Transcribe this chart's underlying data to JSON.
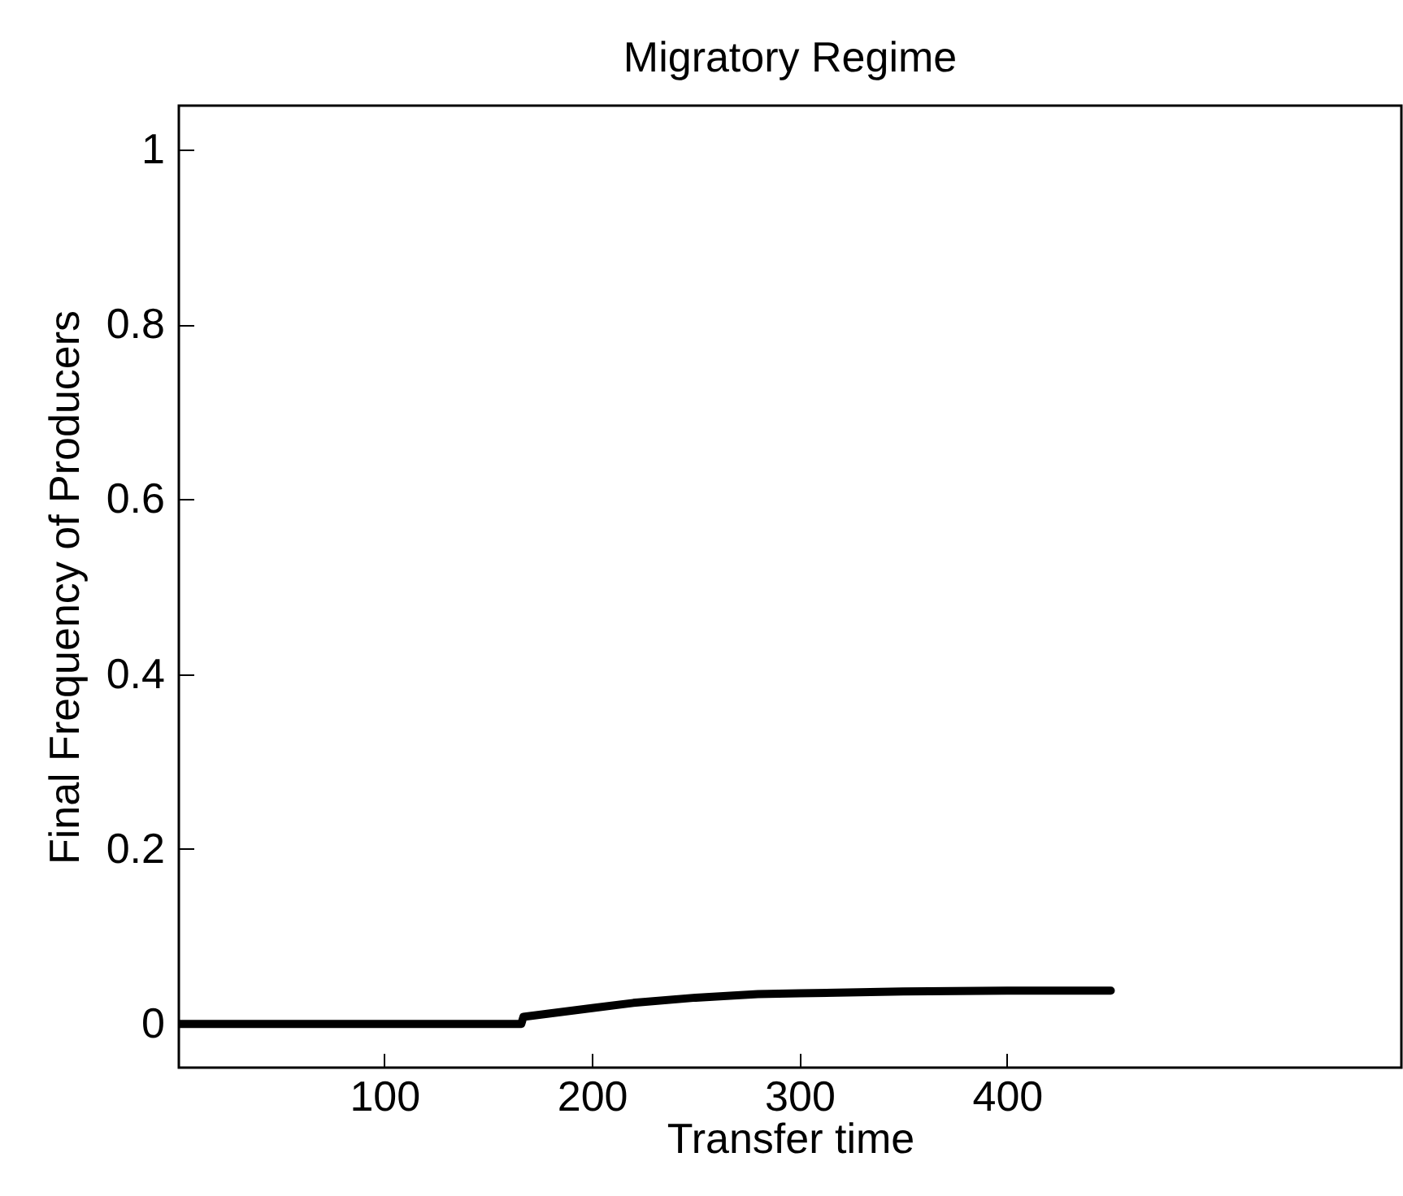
{
  "chart_data": {
    "type": "line",
    "title": "Migratory Regime",
    "xlabel": "Transfer time",
    "ylabel": "Final Frequency of Producers",
    "x": [
      1,
      50,
      100,
      166,
      167,
      180,
      200,
      220,
      250,
      280,
      300,
      350,
      400,
      450
    ],
    "series": [
      {
        "color": "#000000",
        "values": [
          0,
          0,
          0,
          0,
          0.008,
          0.012,
          0.018,
          0.024,
          0.03,
          0.034,
          0.035,
          0.037,
          0.038,
          0.038
        ]
      }
    ],
    "xlim": [
      1,
      590
    ],
    "xticks": [
      100,
      200,
      300,
      400
    ],
    "ylim": [
      -0.05,
      1.05
    ],
    "yticks": [
      0,
      0.2,
      0.4,
      0.6,
      0.8,
      1
    ],
    "grid": false,
    "marker": "none",
    "line_style": "solid"
  }
}
